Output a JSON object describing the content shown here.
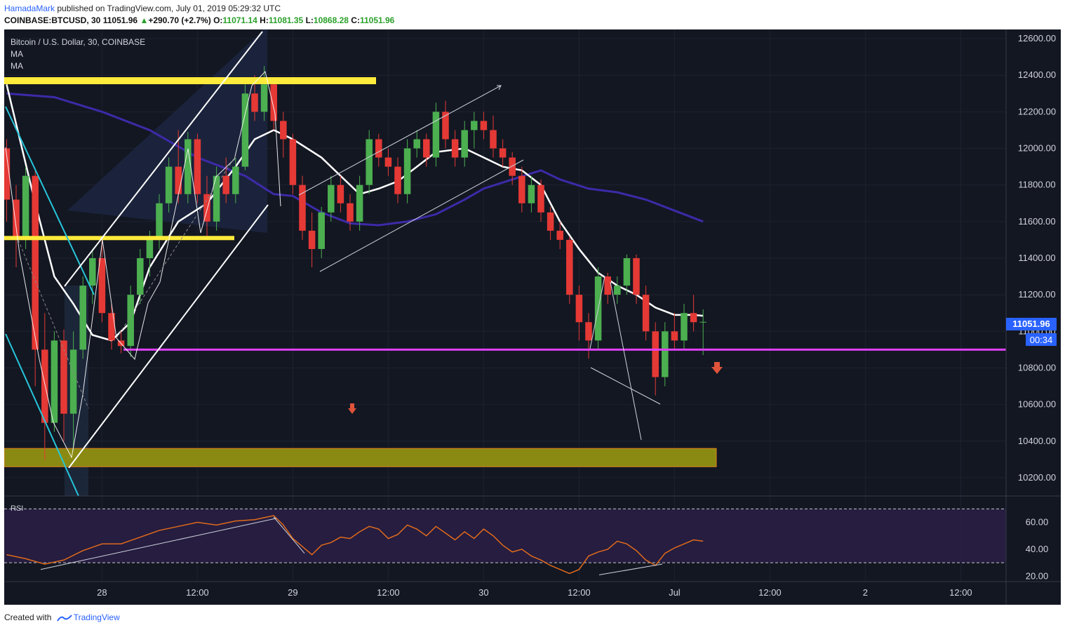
{
  "header": {
    "author": "HamadaMark",
    "published_text": "published on TradingView.com, July 01, 2019 05:29:32 UTC"
  },
  "quote": {
    "symbol": "COINBASE:BTCUSD, 30",
    "last": "11051.96",
    "arrow": "▲",
    "change": "+290.70 (+2.7%)",
    "o_label": "O:",
    "o": "11071.14",
    "h_label": "H:",
    "h": "11081.35",
    "l_label": "L:",
    "l": "10868.28",
    "c_label": "C:",
    "c": "11051.96"
  },
  "legend": {
    "title": "Bitcoin / U.S. Dollar, 30, COINBASE",
    "ma1": "MA",
    "ma2": "MA",
    "rsi": "RSI"
  },
  "price_tag": {
    "value": "11051.96",
    "countdown": "00:34"
  },
  "footer": {
    "created_with": "Created with",
    "brand": "TradingView"
  },
  "colors": {
    "background": "#131722",
    "bull": "#4caf50",
    "bear": "#e53935",
    "ma_fast": "#ffffff",
    "ma_slow": "#3d2aa8",
    "rsi_line": "#e06a1b",
    "rsi_band": "#2a1f45",
    "support": "#e040fb",
    "resistance": "#ffeb3b",
    "zone": "#8a8a12",
    "price_tag": "#2962ff",
    "sell_arrow": "#e0533a"
  },
  "chart_data": {
    "type": "candlestick",
    "price_axis": {
      "range": [
        10100,
        12650
      ],
      "ticks": [
        12600,
        12400,
        12200,
        12000,
        11800,
        11600,
        11400,
        11200,
        11000,
        10800,
        10600,
        10400,
        10200
      ],
      "tick_labels": [
        "12600.00",
        "12400.00",
        "12200.00",
        "12000.00",
        "11800.00",
        "11600.00",
        "11400.00",
        "11200.00",
        "11000.00",
        "10800.00",
        "10600.00",
        "10400.00",
        "10200.00"
      ]
    },
    "time_axis": {
      "labels": [
        "28",
        "12:00",
        "29",
        "12:00",
        "30",
        "12:00",
        "Jul",
        "12:00",
        "2",
        "12:00"
      ],
      "bar_index": [
        20,
        40,
        60,
        80,
        100,
        120,
        140,
        160,
        180,
        200
      ],
      "bar_count": 210
    },
    "rsi_axis": {
      "range": [
        16,
        78
      ],
      "ticks": [
        60,
        40,
        20
      ],
      "tick_labels": [
        "60.00",
        "40.00",
        "20.00"
      ],
      "bands": [
        70,
        30
      ]
    },
    "candles": [
      {
        "i": 0,
        "o": 12000,
        "h": 12050,
        "l": 11600,
        "c": 11720
      },
      {
        "i": 2,
        "o": 11720,
        "h": 11800,
        "l": 11350,
        "c": 11500
      },
      {
        "i": 4,
        "o": 11500,
        "h": 11900,
        "l": 11450,
        "c": 11850
      },
      {
        "i": 6,
        "o": 11850,
        "h": 11880,
        "l": 10700,
        "c": 10900
      },
      {
        "i": 8,
        "o": 10900,
        "h": 11100,
        "l": 10300,
        "c": 10500
      },
      {
        "i": 10,
        "o": 10500,
        "h": 11000,
        "l": 10450,
        "c": 10950
      },
      {
        "i": 12,
        "o": 10950,
        "h": 11010,
        "l": 10400,
        "c": 10550
      },
      {
        "i": 14,
        "o": 10550,
        "h": 11000,
        "l": 10350,
        "c": 10900
      },
      {
        "i": 16,
        "o": 10900,
        "h": 11300,
        "l": 10850,
        "c": 11250
      },
      {
        "i": 18,
        "o": 11250,
        "h": 11450,
        "l": 11150,
        "c": 11400
      },
      {
        "i": 20,
        "o": 11400,
        "h": 11520,
        "l": 11050,
        "c": 11100
      },
      {
        "i": 22,
        "o": 11100,
        "h": 11150,
        "l": 10900,
        "c": 10950
      },
      {
        "i": 24,
        "o": 10950,
        "h": 11000,
        "l": 10880,
        "c": 10920
      },
      {
        "i": 26,
        "o": 10920,
        "h": 11250,
        "l": 10860,
        "c": 11200
      },
      {
        "i": 28,
        "o": 11200,
        "h": 11450,
        "l": 11150,
        "c": 11400
      },
      {
        "i": 30,
        "o": 11400,
        "h": 11550,
        "l": 11300,
        "c": 11500
      },
      {
        "i": 32,
        "o": 11500,
        "h": 11750,
        "l": 11450,
        "c": 11700
      },
      {
        "i": 34,
        "o": 11700,
        "h": 11950,
        "l": 11650,
        "c": 11900
      },
      {
        "i": 36,
        "o": 11900,
        "h": 12100,
        "l": 11700,
        "c": 11750
      },
      {
        "i": 38,
        "o": 11750,
        "h": 12090,
        "l": 11700,
        "c": 12050
      },
      {
        "i": 40,
        "o": 12050,
        "h": 12080,
        "l": 11700,
        "c": 11750
      },
      {
        "i": 42,
        "o": 11750,
        "h": 11850,
        "l": 11500,
        "c": 11600
      },
      {
        "i": 44,
        "o": 11600,
        "h": 11900,
        "l": 11550,
        "c": 11850
      },
      {
        "i": 46,
        "o": 11850,
        "h": 11950,
        "l": 11700,
        "c": 11750
      },
      {
        "i": 48,
        "o": 11750,
        "h": 11950,
        "l": 11700,
        "c": 11900
      },
      {
        "i": 50,
        "o": 11900,
        "h": 12350,
        "l": 11880,
        "c": 12300
      },
      {
        "i": 52,
        "o": 12300,
        "h": 12400,
        "l": 12150,
        "c": 12200
      },
      {
        "i": 54,
        "o": 12200,
        "h": 12450,
        "l": 12150,
        "c": 12350
      },
      {
        "i": 56,
        "o": 12350,
        "h": 12380,
        "l": 12100,
        "c": 12150
      },
      {
        "i": 58,
        "o": 12150,
        "h": 12200,
        "l": 11950,
        "c": 12050
      },
      {
        "i": 60,
        "o": 12050,
        "h": 12080,
        "l": 11750,
        "c": 11800
      },
      {
        "i": 62,
        "o": 11800,
        "h": 11850,
        "l": 11500,
        "c": 11550
      },
      {
        "i": 64,
        "o": 11550,
        "h": 11650,
        "l": 11350,
        "c": 11450
      },
      {
        "i": 66,
        "o": 11450,
        "h": 11680,
        "l": 11400,
        "c": 11650
      },
      {
        "i": 68,
        "o": 11650,
        "h": 11850,
        "l": 11600,
        "c": 11800
      },
      {
        "i": 70,
        "o": 11800,
        "h": 11850,
        "l": 11650,
        "c": 11700
      },
      {
        "i": 72,
        "o": 11700,
        "h": 11750,
        "l": 11550,
        "c": 11600
      },
      {
        "i": 74,
        "o": 11600,
        "h": 11850,
        "l": 11550,
        "c": 11800
      },
      {
        "i": 76,
        "o": 11800,
        "h": 12100,
        "l": 11750,
        "c": 12050
      },
      {
        "i": 78,
        "o": 12050,
        "h": 12080,
        "l": 11900,
        "c": 11950
      },
      {
        "i": 80,
        "o": 11950,
        "h": 12000,
        "l": 11850,
        "c": 11900
      },
      {
        "i": 82,
        "o": 11900,
        "h": 11950,
        "l": 11700,
        "c": 11750
      },
      {
        "i": 84,
        "o": 11750,
        "h": 12050,
        "l": 11700,
        "c": 12000
      },
      {
        "i": 86,
        "o": 12000,
        "h": 12100,
        "l": 11950,
        "c": 12050
      },
      {
        "i": 88,
        "o": 12050,
        "h": 12080,
        "l": 11900,
        "c": 11950
      },
      {
        "i": 90,
        "o": 11950,
        "h": 12250,
        "l": 11900,
        "c": 12200
      },
      {
        "i": 92,
        "o": 12200,
        "h": 12260,
        "l": 12000,
        "c": 12050
      },
      {
        "i": 94,
        "o": 12050,
        "h": 12100,
        "l": 11900,
        "c": 11950
      },
      {
        "i": 96,
        "o": 11950,
        "h": 12150,
        "l": 11900,
        "c": 12100
      },
      {
        "i": 98,
        "o": 12100,
        "h": 12200,
        "l": 12000,
        "c": 12150
      },
      {
        "i": 100,
        "o": 12150,
        "h": 12200,
        "l": 12050,
        "c": 12100
      },
      {
        "i": 102,
        "o": 12100,
        "h": 12180,
        "l": 11950,
        "c": 12000
      },
      {
        "i": 104,
        "o": 12000,
        "h": 12050,
        "l": 11900,
        "c": 11950
      },
      {
        "i": 106,
        "o": 11950,
        "h": 11980,
        "l": 11800,
        "c": 11850
      },
      {
        "i": 108,
        "o": 11850,
        "h": 11900,
        "l": 11650,
        "c": 11700
      },
      {
        "i": 110,
        "o": 11700,
        "h": 11850,
        "l": 11650,
        "c": 11800
      },
      {
        "i": 112,
        "o": 11800,
        "h": 11830,
        "l": 11600,
        "c": 11650
      },
      {
        "i": 114,
        "o": 11650,
        "h": 11680,
        "l": 11500,
        "c": 11550
      },
      {
        "i": 116,
        "o": 11550,
        "h": 11600,
        "l": 11450,
        "c": 11500
      },
      {
        "i": 118,
        "o": 11500,
        "h": 11520,
        "l": 11150,
        "c": 11200
      },
      {
        "i": 120,
        "o": 11200,
        "h": 11250,
        "l": 10950,
        "c": 11050
      },
      {
        "i": 122,
        "o": 11050,
        "h": 11100,
        "l": 10850,
        "c": 10950
      },
      {
        "i": 124,
        "o": 10950,
        "h": 11350,
        "l": 10900,
        "c": 11300
      },
      {
        "i": 126,
        "o": 11300,
        "h": 11320,
        "l": 11150,
        "c": 11200
      },
      {
        "i": 128,
        "o": 11200,
        "h": 11300,
        "l": 11150,
        "c": 11250
      },
      {
        "i": 130,
        "o": 11250,
        "h": 11420,
        "l": 11200,
        "c": 11400
      },
      {
        "i": 132,
        "o": 11400,
        "h": 11420,
        "l": 11150,
        "c": 11200
      },
      {
        "i": 134,
        "o": 11200,
        "h": 11250,
        "l": 10950,
        "c": 11000
      },
      {
        "i": 136,
        "o": 11000,
        "h": 11050,
        "l": 10650,
        "c": 10750
      },
      {
        "i": 138,
        "o": 10750,
        "h": 11050,
        "l": 10700,
        "c": 11000
      },
      {
        "i": 140,
        "o": 11000,
        "h": 11100,
        "l": 10900,
        "c": 10950
      },
      {
        "i": 142,
        "o": 10950,
        "h": 11150,
        "l": 10900,
        "c": 11100
      },
      {
        "i": 144,
        "o": 11100,
        "h": 11200,
        "l": 11000,
        "c": 11050
      },
      {
        "i": 146,
        "o": 11050,
        "h": 11120,
        "l": 10870,
        "c": 11052
      }
    ],
    "ma_fast": {
      "values": [
        [
          0,
          12350
        ],
        [
          6,
          11700
        ],
        [
          10,
          11300
        ],
        [
          14,
          11150
        ],
        [
          18,
          10980
        ],
        [
          22,
          10950
        ],
        [
          26,
          11050
        ],
        [
          30,
          11350
        ],
        [
          36,
          11600
        ],
        [
          42,
          11700
        ],
        [
          48,
          11900
        ],
        [
          52,
          12050
        ],
        [
          56,
          12100
        ],
        [
          60,
          12050
        ],
        [
          66,
          11950
        ],
        [
          70,
          11850
        ],
        [
          74,
          11750
        ],
        [
          78,
          11780
        ],
        [
          82,
          11820
        ],
        [
          86,
          11900
        ],
        [
          90,
          11980
        ],
        [
          96,
          12000
        ],
        [
          100,
          11950
        ],
        [
          104,
          11900
        ],
        [
          108,
          11880
        ],
        [
          112,
          11800
        ],
        [
          116,
          11600
        ],
        [
          120,
          11450
        ],
        [
          124,
          11320
        ],
        [
          128,
          11250
        ],
        [
          132,
          11200
        ],
        [
          136,
          11130
        ],
        [
          140,
          11090
        ],
        [
          144,
          11090
        ],
        [
          146,
          11085
        ]
      ]
    },
    "ma_slow": {
      "values": [
        [
          0,
          12300
        ],
        [
          10,
          12280
        ],
        [
          20,
          12200
        ],
        [
          30,
          12100
        ],
        [
          40,
          11950
        ],
        [
          50,
          11850
        ],
        [
          56,
          11750
        ],
        [
          60,
          11740
        ],
        [
          66,
          11650
        ],
        [
          72,
          11590
        ],
        [
          78,
          11580
        ],
        [
          84,
          11600
        ],
        [
          90,
          11640
        ],
        [
          96,
          11720
        ],
        [
          100,
          11780
        ],
        [
          106,
          11830
        ],
        [
          112,
          11880
        ],
        [
          116,
          11830
        ],
        [
          122,
          11780
        ],
        [
          128,
          11760
        ],
        [
          134,
          11720
        ],
        [
          140,
          11660
        ],
        [
          146,
          11600
        ]
      ]
    },
    "rsi": {
      "values": [
        [
          0,
          36
        ],
        [
          4,
          33
        ],
        [
          8,
          29
        ],
        [
          12,
          32
        ],
        [
          16,
          39
        ],
        [
          20,
          44
        ],
        [
          24,
          44
        ],
        [
          28,
          49
        ],
        [
          32,
          54
        ],
        [
          36,
          57
        ],
        [
          40,
          60
        ],
        [
          44,
          58
        ],
        [
          48,
          61
        ],
        [
          52,
          62
        ],
        [
          56,
          65
        ],
        [
          58,
          58
        ],
        [
          60,
          48
        ],
        [
          62,
          42
        ],
        [
          64,
          36
        ],
        [
          66,
          43
        ],
        [
          68,
          45
        ],
        [
          70,
          49
        ],
        [
          72,
          48
        ],
        [
          74,
          53
        ],
        [
          76,
          57
        ],
        [
          78,
          55
        ],
        [
          80,
          48
        ],
        [
          82,
          51
        ],
        [
          84,
          58
        ],
        [
          86,
          55
        ],
        [
          88,
          50
        ],
        [
          90,
          57
        ],
        [
          92,
          52
        ],
        [
          94,
          47
        ],
        [
          96,
          53
        ],
        [
          98,
          48
        ],
        [
          100,
          55
        ],
        [
          102,
          50
        ],
        [
          104,
          43
        ],
        [
          106,
          38
        ],
        [
          108,
          40
        ],
        [
          110,
          35
        ],
        [
          112,
          32
        ],
        [
          114,
          28
        ],
        [
          116,
          25
        ],
        [
          118,
          22
        ],
        [
          120,
          25
        ],
        [
          122,
          35
        ],
        [
          124,
          38
        ],
        [
          126,
          40
        ],
        [
          128,
          46
        ],
        [
          130,
          44
        ],
        [
          132,
          39
        ],
        [
          134,
          32
        ],
        [
          136,
          28
        ],
        [
          138,
          37
        ],
        [
          140,
          41
        ],
        [
          142,
          44
        ],
        [
          144,
          47
        ],
        [
          146,
          46
        ]
      ]
    },
    "levels": {
      "support_magenta": 10900,
      "resistance_yellow_top": 12370,
      "resistance_yellow_mid": 11510,
      "zone": [
        10260,
        10360
      ]
    }
  }
}
